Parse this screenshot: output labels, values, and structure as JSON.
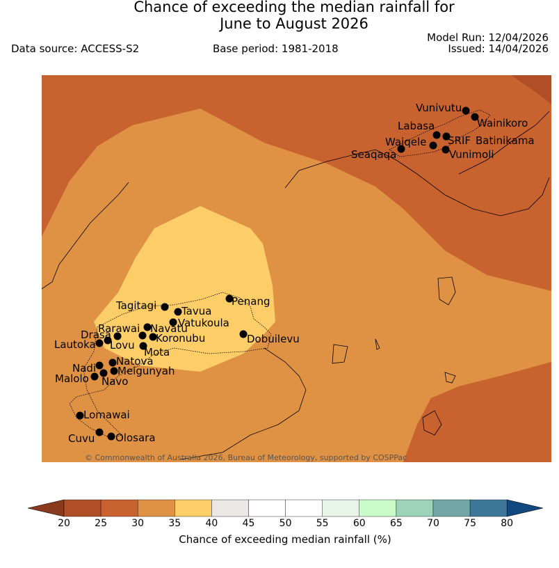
{
  "title": {
    "line1": "Chance of exceeding the median rainfall for",
    "line2": "June to August 2026"
  },
  "meta": {
    "model_run": "Model Run: 12/04/2026",
    "issued": "Issued: 14/04/2026",
    "data_source": "Data source: ACCESS-S2",
    "base_period": "Base period: 1981-2018"
  },
  "copyright": "© Commonwealth of Australia 2026, Bureau of Meteorology, supported by COSPPac",
  "legend": {
    "label": "Chance of exceeding median rainfall (%)",
    "ticks": [
      "20",
      "25",
      "30",
      "35",
      "40",
      "45",
      "50",
      "55",
      "60",
      "65",
      "70",
      "75",
      "80"
    ],
    "colors": [
      "#b04f27",
      "#c8622f",
      "#e09244",
      "#fdcd67",
      "#ebe7e4",
      "#ffffff",
      "#ffffff",
      "#e9f4e8",
      "#c9fcc9",
      "#9dd3b8",
      "#72a7a8",
      "#3e7899"
    ],
    "under_color": "#8a3a1f",
    "over_color": "#12497f"
  },
  "map_colors": {
    "band_25_30": "#c8622f",
    "band_30_35": "#e09244",
    "band_35_40": "#fdcd67",
    "band_20_25": "#b04f27"
  },
  "stations": [
    {
      "name": "Vunivutu"
    },
    {
      "name": "Wainikoro"
    },
    {
      "name": "Labasa"
    },
    {
      "name": "Waiqele"
    },
    {
      "name": "SRIF"
    },
    {
      "name": "Batinikama"
    },
    {
      "name": "Seaqaqa"
    },
    {
      "name": "Vunimoli"
    },
    {
      "name": "Penang"
    },
    {
      "name": "Tagitagi"
    },
    {
      "name": "Tavua"
    },
    {
      "name": "Vatukoula"
    },
    {
      "name": "Rarawai"
    },
    {
      "name": "Navatu"
    },
    {
      "name": "Drasa"
    },
    {
      "name": "Koronubu"
    },
    {
      "name": "Lautoka"
    },
    {
      "name": "Lovu"
    },
    {
      "name": "Mota"
    },
    {
      "name": "Dobuilevu"
    },
    {
      "name": "Natova"
    },
    {
      "name": "Nadi"
    },
    {
      "name": "Meigunyah"
    },
    {
      "name": "Malolo"
    },
    {
      "name": "Navo"
    },
    {
      "name": "Lomawai"
    },
    {
      "name": "Cuvu"
    },
    {
      "name": "Olosara"
    }
  ]
}
